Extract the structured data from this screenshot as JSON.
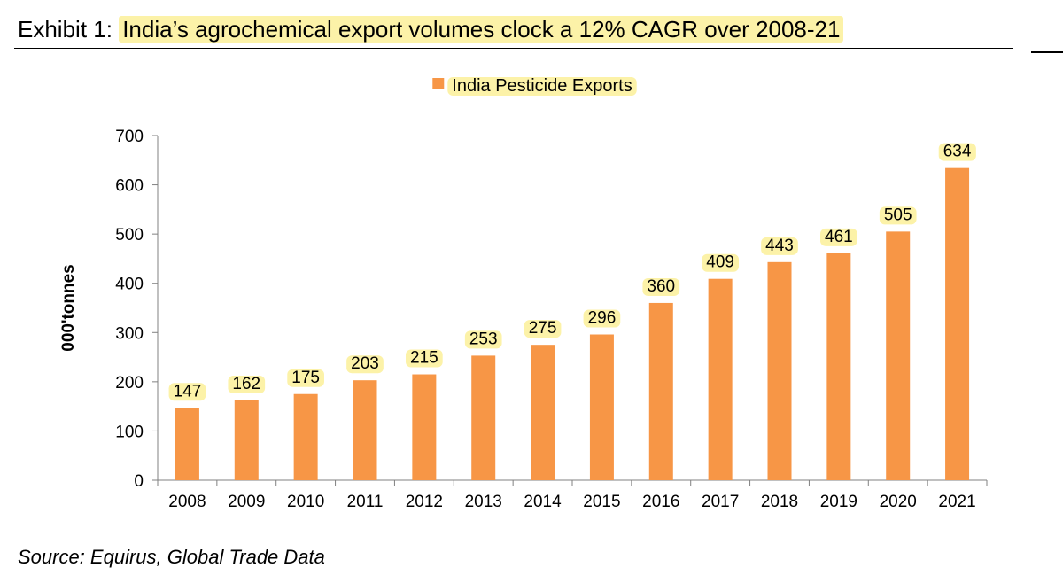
{
  "header": {
    "exhibit": "Exhibit 1:",
    "title": "India’s agrochemical export volumes clock a 12% CAGR over 2008-21"
  },
  "source": "Source: Equirus, Global Trade Data",
  "colors": {
    "bar": "#f79646",
    "highlight": "#fcf2a8",
    "axis": "#808080"
  },
  "chart_data": {
    "type": "bar",
    "title": "",
    "categories": [
      "2008",
      "2009",
      "2010",
      "2011",
      "2012",
      "2013",
      "2014",
      "2015",
      "2016",
      "2017",
      "2018",
      "2019",
      "2020",
      "2021"
    ],
    "series": [
      {
        "name": "India Pesticide Exports",
        "values": [
          147,
          162,
          175,
          203,
          215,
          253,
          275,
          296,
          360,
          409,
          443,
          461,
          505,
          634
        ]
      }
    ],
    "xlabel": "",
    "ylabel": "000'tonnes",
    "ylim": [
      0,
      700
    ],
    "yticks": [
      0,
      100,
      200,
      300,
      400,
      500,
      600,
      700
    ],
    "grid": false,
    "legend": "top-center",
    "data_labels": true
  }
}
